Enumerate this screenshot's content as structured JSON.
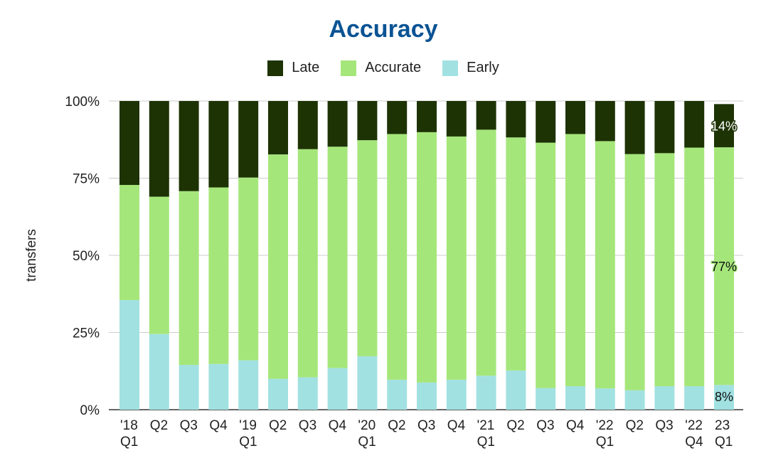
{
  "chart_data": {
    "type": "bar",
    "stacked": true,
    "normalized": true,
    "title": "Accuracy",
    "xlabel": "",
    "ylabel": "transfers",
    "ylim": [
      0,
      100
    ],
    "yticks": [
      "0%",
      "25%",
      "50%",
      "75%",
      "100%"
    ],
    "legend_position": "top",
    "grid": true,
    "categories": [
      [
        "'18",
        "Q1"
      ],
      [
        "Q2"
      ],
      [
        "Q3"
      ],
      [
        "Q4"
      ],
      [
        "'19",
        "Q1"
      ],
      [
        "Q2"
      ],
      [
        "Q3"
      ],
      [
        "Q4"
      ],
      [
        "'20",
        "Q1"
      ],
      [
        "Q2"
      ],
      [
        "Q3"
      ],
      [
        "Q4"
      ],
      [
        "'21",
        "Q1"
      ],
      [
        "Q2"
      ],
      [
        "Q3"
      ],
      [
        "Q4"
      ],
      [
        "'22",
        "Q1"
      ],
      [
        "Q2"
      ],
      [
        "Q3"
      ],
      [
        "'22",
        "Q4"
      ],
      [
        "23",
        "Q1"
      ]
    ],
    "series": [
      {
        "name": "Early",
        "color": "#a2e1e1",
        "values": [
          35.5,
          24.5,
          14.5,
          14.8,
          16,
          10,
          10.5,
          13.5,
          17.3,
          9.7,
          8.8,
          9.7,
          11,
          12.7,
          7,
          7.6,
          6.9,
          6.3,
          7.6,
          7.6,
          8
        ]
      },
      {
        "name": "Accurate",
        "color": "#a5e67a",
        "values": [
          37.3,
          44.5,
          56.3,
          57.2,
          59.2,
          72.7,
          73.9,
          71.7,
          70,
          79.6,
          81.1,
          78.8,
          79.7,
          75.5,
          79.5,
          81.7,
          80.1,
          76.5,
          75.5,
          77.3,
          77
        ]
      },
      {
        "name": "Late",
        "color": "#1d3304",
        "values": [
          27.2,
          31,
          29.2,
          28,
          24.8,
          17.3,
          15.6,
          14.8,
          12.7,
          10.7,
          10.1,
          11.5,
          9.3,
          11.8,
          13.5,
          10.7,
          13,
          17.2,
          16.9,
          15.1,
          14
        ]
      }
    ],
    "legend_order": [
      "Late",
      "Accurate",
      "Early"
    ],
    "data_labels": [
      {
        "category_index": 20,
        "series": "Late",
        "text": "14%"
      },
      {
        "category_index": 20,
        "series": "Accurate",
        "text": "77%"
      },
      {
        "category_index": 20,
        "series": "Early",
        "text": "8%"
      }
    ]
  }
}
